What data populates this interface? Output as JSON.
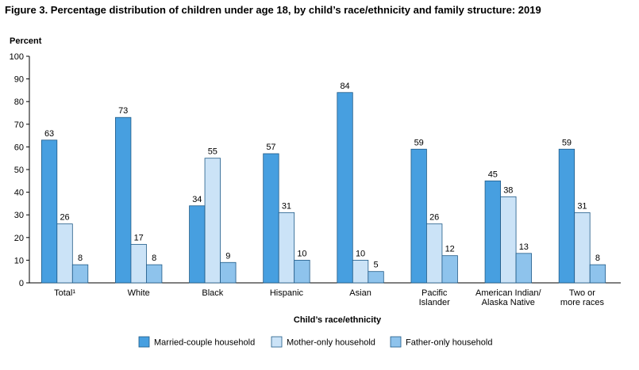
{
  "chart_data": {
    "type": "bar",
    "title": "Figure 3. Percentage distribution of children under age 18, by child’s race/ethnicity and family structure: 2019",
    "ylabel": "Percent",
    "xlabel": "Child’s race/ethnicity",
    "ylim": [
      0,
      100
    ],
    "yticks": [
      "0",
      "10",
      "20",
      "30",
      "40",
      "50",
      "60",
      "70",
      "80",
      "90",
      "100"
    ],
    "categories": [
      [
        "Total¹"
      ],
      [
        "White"
      ],
      [
        "Black"
      ],
      [
        "Hispanic"
      ],
      [
        "Asian"
      ],
      [
        "Pacific",
        "Islander"
      ],
      [
        "American Indian/",
        "Alaska Native"
      ],
      [
        "Two or",
        "more races"
      ]
    ],
    "series": [
      {
        "name": "Married-couple household",
        "color": "#479fe0",
        "values": [
          63,
          73,
          34,
          57,
          84,
          59,
          45,
          59
        ]
      },
      {
        "name": "Mother-only household",
        "color": "#cbe3f7",
        "values": [
          26,
          17,
          55,
          31,
          10,
          26,
          38,
          31
        ]
      },
      {
        "name": "Father-only household",
        "color": "#8ec3ec",
        "values": [
          8,
          8,
          9,
          10,
          5,
          12,
          13,
          8
        ]
      }
    ],
    "legend_position": "bottom",
    "grid": false
  }
}
